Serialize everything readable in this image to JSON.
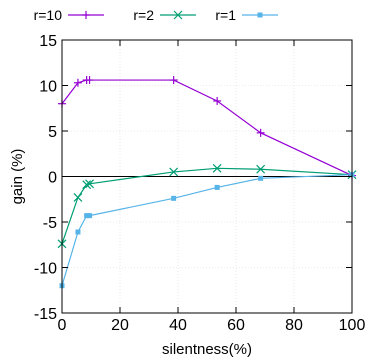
{
  "chart_data": {
    "type": "line",
    "title": "",
    "xlabel": "silentness(%)",
    "ylabel": "gain (%)",
    "xlim": [
      0,
      100
    ],
    "ylim": [
      -15,
      15
    ],
    "xticks": [
      0,
      20,
      40,
      60,
      80,
      100
    ],
    "yticks": [
      -15,
      -10,
      -5,
      0,
      5,
      10,
      15
    ],
    "grid": true,
    "zero_line": true,
    "legend_position": "top",
    "series": [
      {
        "name": "r=10",
        "color": "#9400d3",
        "marker": "plus",
        "points": [
          [
            0,
            8.0
          ],
          [
            5.5,
            10.3
          ],
          [
            8.5,
            10.6
          ],
          [
            9.5,
            10.6
          ],
          [
            38.5,
            10.6
          ],
          [
            53.5,
            8.3
          ],
          [
            68.5,
            4.8
          ],
          [
            100,
            0.1
          ]
        ]
      },
      {
        "name": "r=2",
        "color": "#009e73",
        "marker": "cross",
        "points": [
          [
            0,
            -7.4
          ],
          [
            5.5,
            -2.3
          ],
          [
            8.5,
            -0.9
          ],
          [
            9.5,
            -0.8
          ],
          [
            38.5,
            0.5
          ],
          [
            53.5,
            0.9
          ],
          [
            68.5,
            0.8
          ],
          [
            100,
            0.2
          ]
        ]
      },
      {
        "name": "r=1",
        "color": "#56b4e9",
        "marker": "square",
        "points": [
          [
            0,
            -12.0
          ],
          [
            5.5,
            -6.1
          ],
          [
            8.5,
            -4.3
          ],
          [
            9.5,
            -4.3
          ],
          [
            38.5,
            -2.4
          ],
          [
            53.5,
            -1.2
          ],
          [
            68.5,
            -0.2
          ],
          [
            100,
            0.2
          ]
        ]
      }
    ]
  }
}
